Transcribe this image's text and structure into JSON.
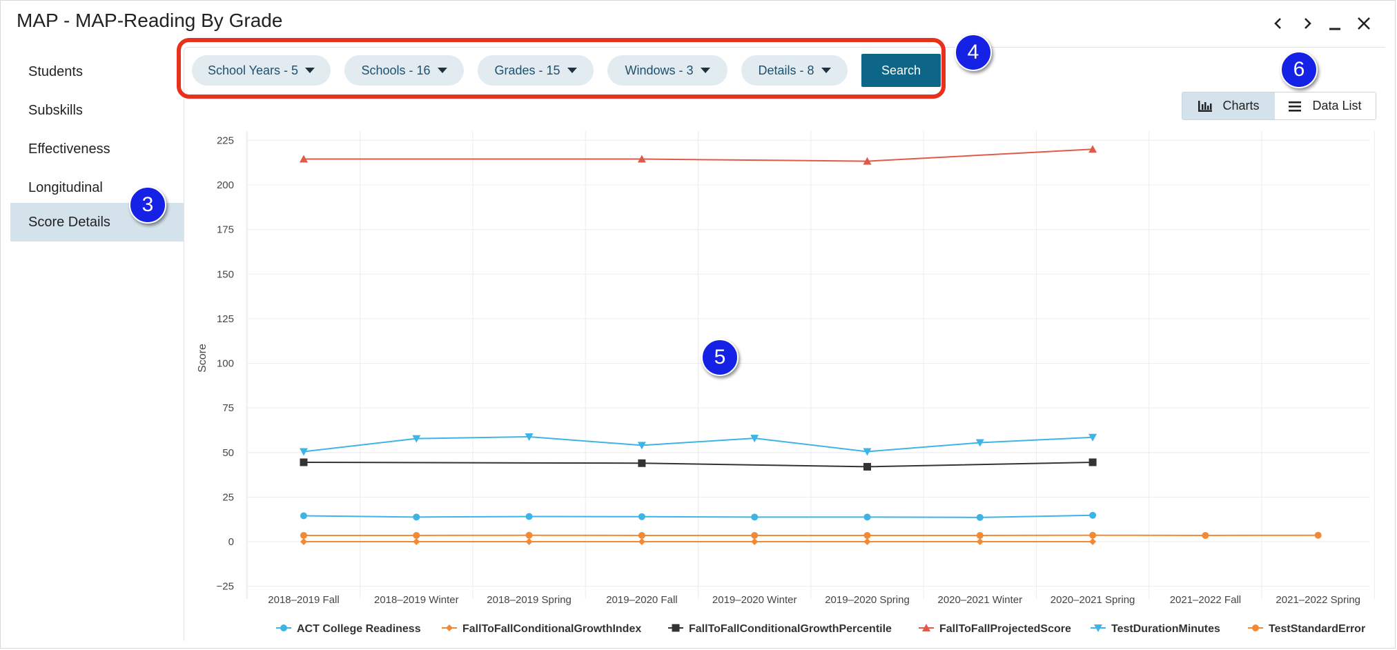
{
  "window": {
    "title": "MAP - MAP-Reading By Grade",
    "nav": {
      "prev_icon": "chevron-left-icon",
      "next_icon": "chevron-right-icon",
      "minimize_icon": "minimize-icon",
      "close_icon": "close-icon"
    }
  },
  "sidebar": {
    "items": [
      {
        "label": "Students",
        "active": false
      },
      {
        "label": "Subskills",
        "active": false
      },
      {
        "label": "Effectiveness",
        "active": false
      },
      {
        "label": "Longitudinal",
        "active": false
      },
      {
        "label": "Score Details",
        "active": true
      }
    ]
  },
  "filters": [
    {
      "label": "School Years - 5"
    },
    {
      "label": "Schools - 16"
    },
    {
      "label": "Grades - 15"
    },
    {
      "label": "Windows - 3"
    },
    {
      "label": "Details - 8"
    }
  ],
  "search_label": "Search",
  "view_toggle": {
    "charts_label": "Charts",
    "datalist_label": "Data List",
    "active": "charts"
  },
  "badges": {
    "b3": "3",
    "b4": "4",
    "b5": "5",
    "b6": "6"
  },
  "colors": {
    "highlight": "#e8301c",
    "badge": "#1522e6",
    "search": "#0d6688"
  },
  "chart_data": {
    "type": "line",
    "ylabel": "Score",
    "ylim": [
      -25,
      225
    ],
    "yticks": [
      -25,
      0,
      25,
      50,
      75,
      100,
      125,
      150,
      175,
      200,
      225
    ],
    "categories": [
      "2018-2019 Fall",
      "2018-2019 Winter",
      "2018-2019 Spring",
      "2019-2020 Fall",
      "2019-2020 Winter",
      "2019-2020 Spring",
      "2020-2021 Winter",
      "2020-2021 Spring",
      "2021-2022 Fall",
      "2021-2022 Spring"
    ],
    "grid": true,
    "legend_position": "bottom",
    "series": [
      {
        "name": "ACT College Readiness",
        "color": "#3eb4e6",
        "marker": "circle",
        "values": [
          [
            0,
            14.5
          ],
          [
            1,
            13.8
          ],
          [
            2,
            14.1
          ],
          [
            3,
            14.0
          ],
          [
            4,
            13.8
          ],
          [
            5,
            13.8
          ],
          [
            6,
            13.6
          ],
          [
            7,
            14.8
          ]
        ]
      },
      {
        "name": "FallToFallConditionalGrowthIndex",
        "color": "#f28a35",
        "marker": "diamond",
        "values": [
          [
            0,
            0
          ],
          [
            1,
            0
          ],
          [
            2,
            0
          ],
          [
            3,
            0
          ],
          [
            4,
            0
          ],
          [
            5,
            0
          ],
          [
            6,
            0
          ],
          [
            7,
            0
          ]
        ]
      },
      {
        "name": "FallToFallConditionalGrowthPercentile",
        "color": "#333333",
        "marker": "square",
        "values": [
          [
            0,
            44.5
          ],
          [
            3,
            44.0
          ],
          [
            5,
            42.0
          ],
          [
            7,
            44.5
          ]
        ]
      },
      {
        "name": "FallToFallProjectedScore",
        "color": "#e05a4a",
        "marker": "triangle",
        "values": [
          [
            0,
            214.5
          ],
          [
            3,
            214.5
          ],
          [
            5,
            213.3
          ],
          [
            7,
            220.0
          ]
        ]
      },
      {
        "name": "TestDurationMinutes",
        "color": "#3eb4e6",
        "marker": "triangle-down",
        "values": [
          [
            0,
            50.5
          ],
          [
            1,
            57.8
          ],
          [
            2,
            58.8
          ],
          [
            3,
            54.0
          ],
          [
            4,
            58.0
          ],
          [
            5,
            50.5
          ],
          [
            6,
            55.5
          ],
          [
            7,
            58.5
          ]
        ]
      },
      {
        "name": "TestStandardError",
        "color": "#f28a35",
        "marker": "circle",
        "values": [
          [
            0,
            3.5
          ],
          [
            1,
            3.5
          ],
          [
            2,
            3.6
          ],
          [
            3,
            3.5
          ],
          [
            4,
            3.5
          ],
          [
            5,
            3.5
          ],
          [
            6,
            3.5
          ],
          [
            7,
            3.6
          ],
          [
            8,
            3.5
          ],
          [
            9,
            3.6
          ]
        ]
      }
    ]
  }
}
